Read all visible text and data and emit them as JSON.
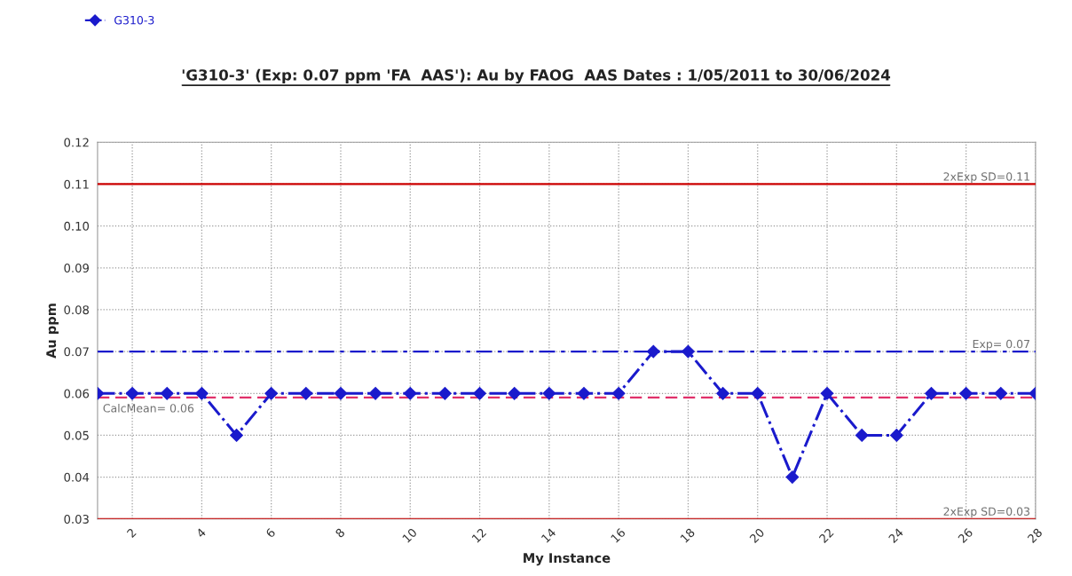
{
  "chart_data": {
    "type": "line",
    "title": "'G310-3' (Exp: 0.07 ppm 'FA  AAS'): Au by FAOG  AAS Dates : 1/05/2011 to 30/06/2024",
    "xlabel": "My Instance",
    "ylabel": "Au ppm",
    "x": [
      1,
      2,
      3,
      4,
      5,
      6,
      7,
      8,
      9,
      10,
      11,
      12,
      13,
      14,
      15,
      16,
      17,
      18,
      19,
      20,
      21,
      22,
      23,
      24,
      25,
      26,
      27,
      28
    ],
    "series": [
      {
        "name": "G310-3",
        "color": "#1a1acc",
        "values": [
          0.06,
          0.06,
          0.06,
          0.06,
          0.05,
          0.06,
          0.06,
          0.06,
          0.06,
          0.06,
          0.06,
          0.06,
          0.06,
          0.06,
          0.06,
          0.06,
          0.07,
          0.07,
          0.06,
          0.06,
          0.04,
          0.06,
          0.05,
          0.05,
          0.06,
          0.06,
          0.06,
          0.06
        ]
      }
    ],
    "xlim": [
      1,
      28
    ],
    "xticks": [
      2,
      4,
      6,
      8,
      10,
      12,
      14,
      16,
      18,
      20,
      22,
      24,
      26,
      28
    ],
    "ylim": [
      0.03,
      0.12
    ],
    "yticks": [
      0.03,
      0.04,
      0.05,
      0.06,
      0.07,
      0.08,
      0.09,
      {
        "value": 0.1,
        "label": "0.10"
      },
      0.11,
      0.12
    ],
    "ref_lines": [
      {
        "axis": "y",
        "value": 0.11,
        "label": "2xExp SD=0.11",
        "color": "#cc0000",
        "line_style": "solid"
      },
      {
        "axis": "y",
        "value": 0.07,
        "label": "Exp= 0.07",
        "color": "#1a1acc",
        "line_style": "dashdot"
      },
      {
        "axis": "y",
        "value": 0.059,
        "label": "CalcMean= 0.06",
        "color": "#e0306a",
        "line_style": "dashed"
      },
      {
        "axis": "y",
        "value": 0.03,
        "label": "2xExp SD=0.03",
        "color": "#cc0000",
        "line_style": "solid"
      }
    ],
    "grid": true,
    "legend": "top left",
    "marker": "diamond",
    "line_style": "dashed"
  }
}
